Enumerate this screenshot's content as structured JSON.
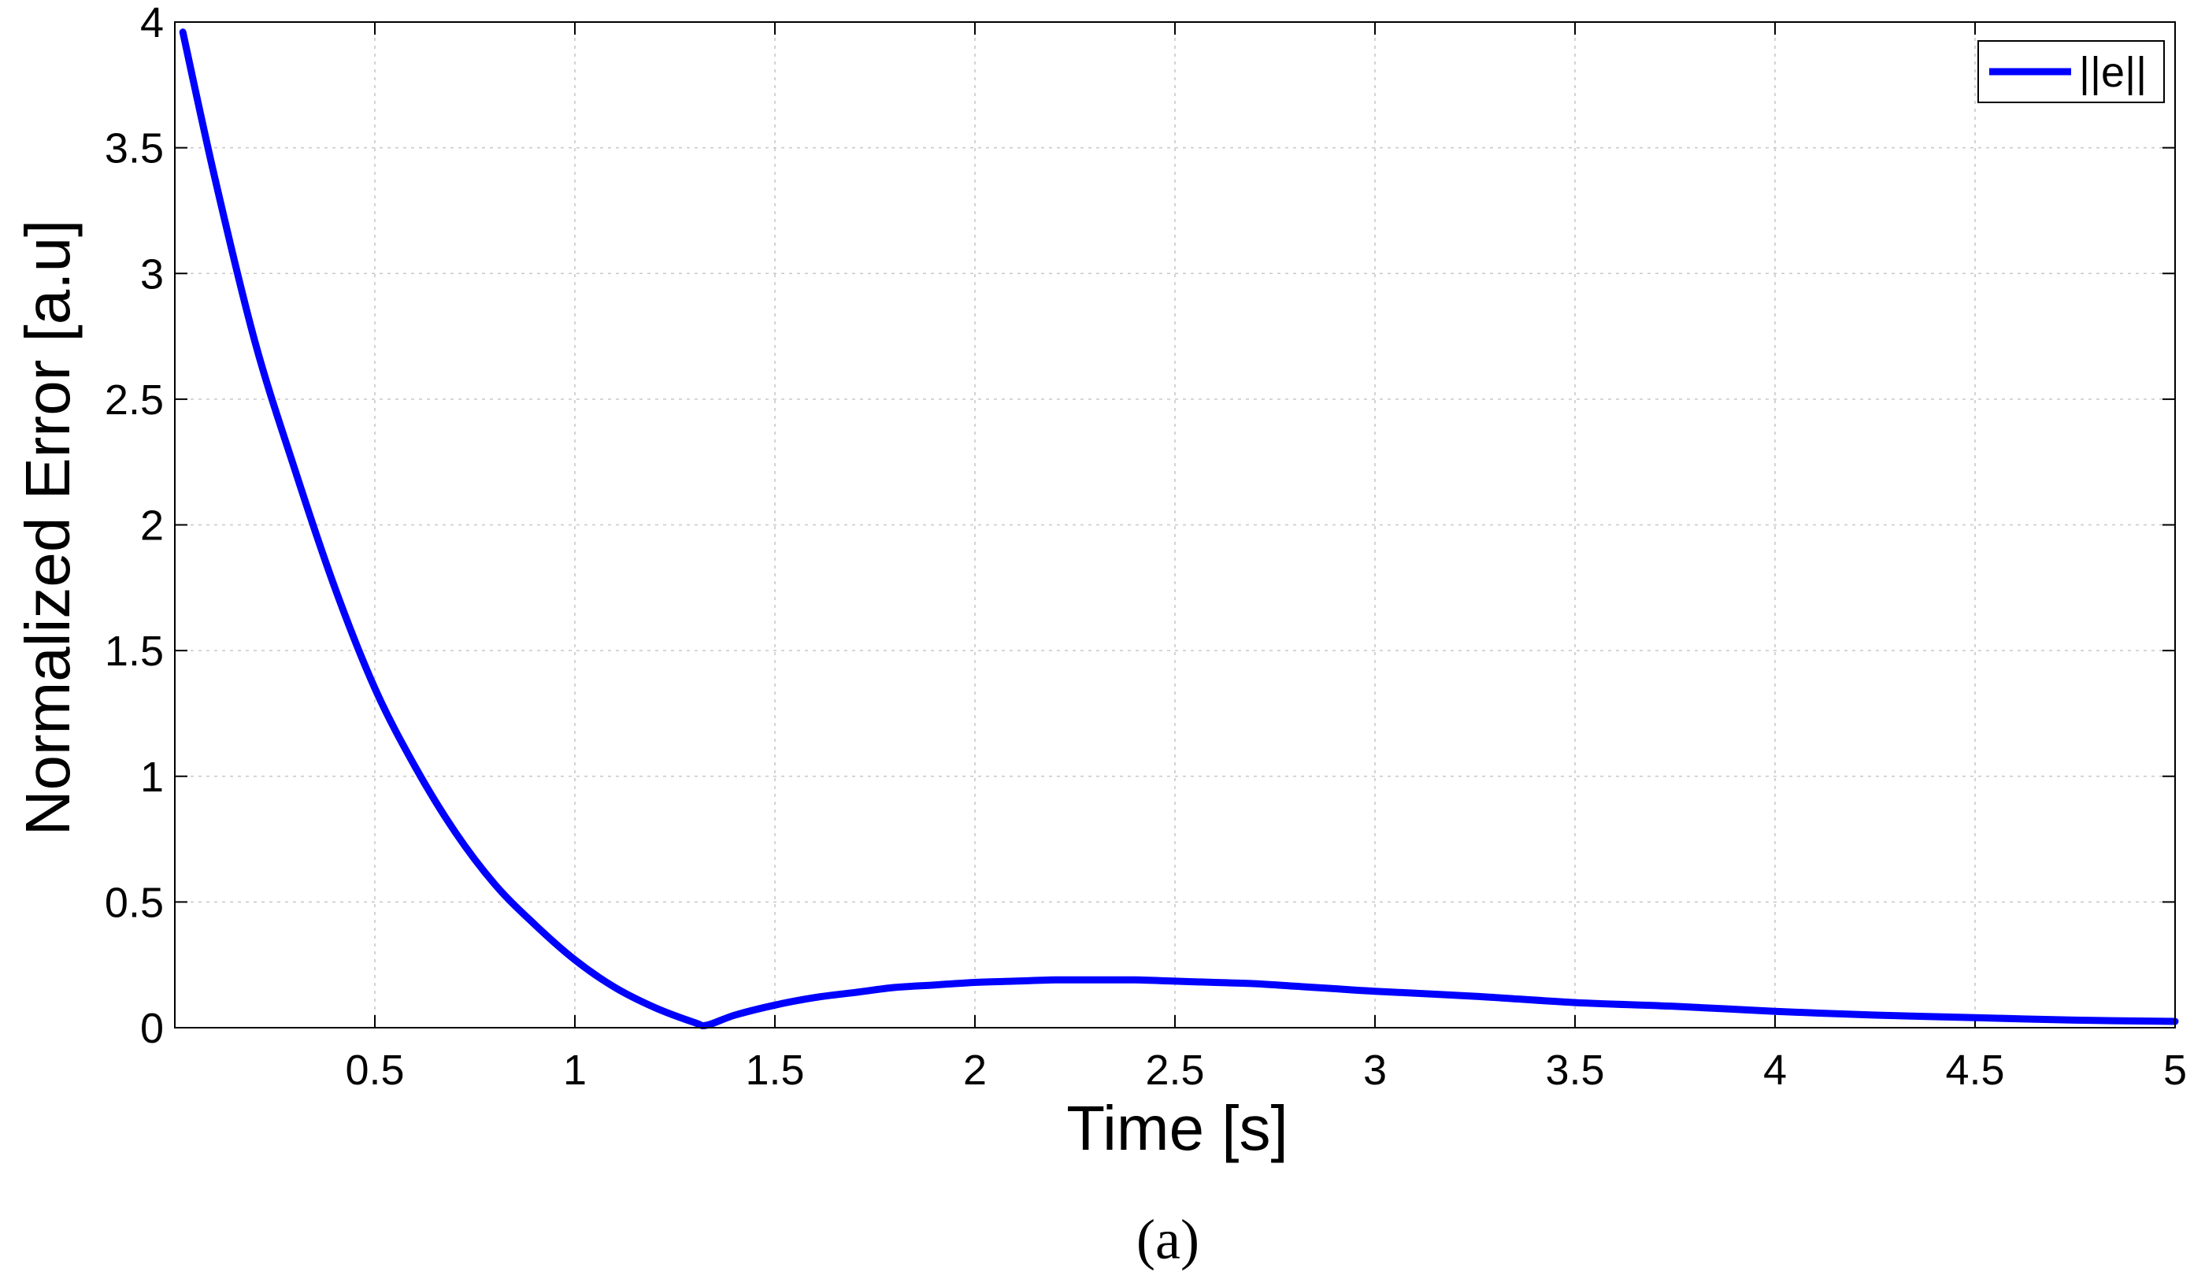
{
  "chart_data": {
    "type": "line",
    "xlabel": "Time [s]",
    "ylabel": "Normalized Error [a.u]",
    "caption": "(a)",
    "xlim": [
      0,
      5
    ],
    "ylim": [
      0,
      4
    ],
    "grid": true,
    "legend_position": "top-right",
    "x_ticks": [
      {
        "value": 0.5,
        "label": "0.5"
      },
      {
        "value": 1,
        "label": "1"
      },
      {
        "value": 1.5,
        "label": "1.5"
      },
      {
        "value": 2,
        "label": "2"
      },
      {
        "value": 2.5,
        "label": "2.5"
      },
      {
        "value": 3,
        "label": "3"
      },
      {
        "value": 3.5,
        "label": "3.5"
      },
      {
        "value": 4,
        "label": "4"
      },
      {
        "value": 4.5,
        "label": "4.5"
      },
      {
        "value": 5,
        "label": "5"
      }
    ],
    "y_ticks": [
      {
        "value": 0,
        "label": "0"
      },
      {
        "value": 0.5,
        "label": "0.5"
      },
      {
        "value": 1,
        "label": "1"
      },
      {
        "value": 1.5,
        "label": "1.5"
      },
      {
        "value": 2,
        "label": "2"
      },
      {
        "value": 2.5,
        "label": "2.5"
      },
      {
        "value": 3,
        "label": "3"
      },
      {
        "value": 3.5,
        "label": "3.5"
      },
      {
        "value": 4,
        "label": "4"
      }
    ],
    "series": [
      {
        "name": "||e||",
        "color": "#0000ff",
        "x": [
          0.02,
          0.1,
          0.2,
          0.3,
          0.4,
          0.5,
          0.6,
          0.7,
          0.8,
          0.9,
          1.0,
          1.1,
          1.2,
          1.3,
          1.33,
          1.4,
          1.5,
          1.6,
          1.7,
          1.8,
          1.9,
          2.0,
          2.1,
          2.2,
          2.3,
          2.4,
          2.5,
          2.6,
          2.7,
          2.8,
          2.9,
          3.0,
          3.25,
          3.5,
          3.75,
          4.0,
          4.25,
          4.5,
          4.75,
          5.0
        ],
        "y": [
          3.96,
          3.38,
          2.73,
          2.22,
          1.75,
          1.35,
          1.04,
          0.78,
          0.57,
          0.41,
          0.27,
          0.16,
          0.08,
          0.02,
          0.01,
          0.05,
          0.09,
          0.12,
          0.14,
          0.16,
          0.17,
          0.18,
          0.185,
          0.19,
          0.19,
          0.19,
          0.185,
          0.18,
          0.175,
          0.165,
          0.155,
          0.145,
          0.125,
          0.1,
          0.085,
          0.065,
          0.05,
          0.04,
          0.03,
          0.025
        ]
      }
    ]
  }
}
